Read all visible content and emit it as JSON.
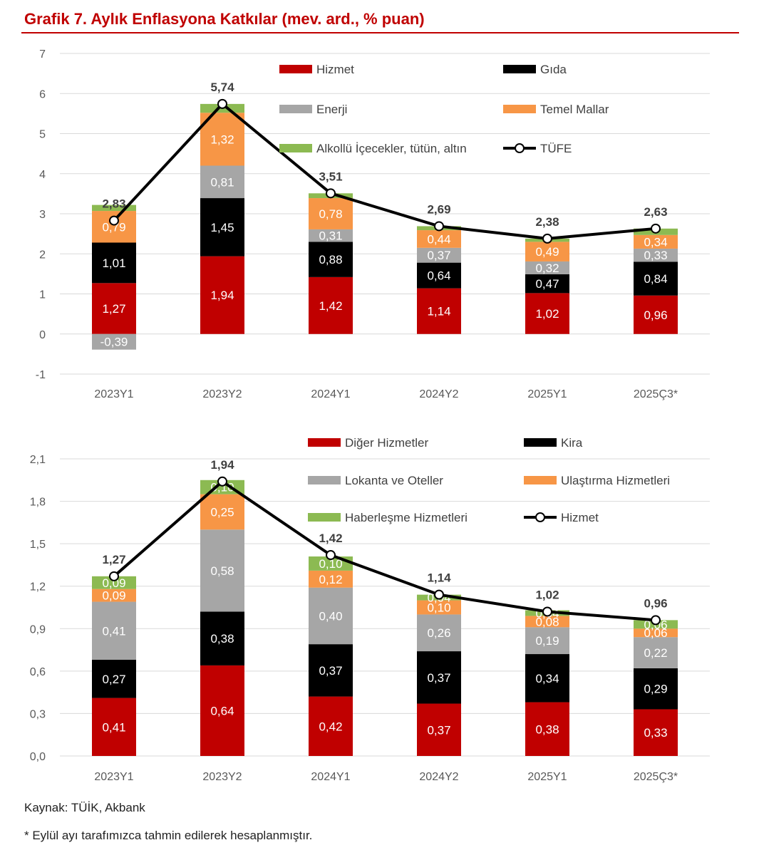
{
  "title": "Grafik 7. Aylık Enflasyona Katkılar (mev. ard., % puan)",
  "footer": {
    "source": "Kaynak: TÜİK, Akbank",
    "note": "* Eylül ayı tarafımızca tahmin edilerek hesaplanmıştır."
  },
  "chart_data": [
    {
      "type": "bar",
      "stacked": true,
      "categories": [
        "2023Y1",
        "2023Y2",
        "2024Y1",
        "2024Y2",
        "2025Y1",
        "2025Ç3*"
      ],
      "ylim": [
        -1,
        7
      ],
      "yticks": [
        "-1",
        "0",
        "1",
        "2",
        "3",
        "4",
        "5",
        "6",
        "7"
      ],
      "grid": true,
      "legend": "top",
      "series": [
        {
          "name": "Hizmet",
          "color": "#c00000",
          "values": [
            1.27,
            1.94,
            1.42,
            1.14,
            1.02,
            0.96
          ],
          "labels": [
            "1,27",
            "1,94",
            "1,42",
            "1,14",
            "1,02",
            "0,96"
          ]
        },
        {
          "name": "Gıda",
          "color": "#000000",
          "values": [
            1.01,
            1.45,
            0.88,
            0.64,
            0.47,
            0.84
          ],
          "labels": [
            "1,01",
            "1,45",
            "0,88",
            "0,64",
            "0,47",
            "0,84"
          ]
        },
        {
          "name": "Enerji",
          "color": "#a6a6a6",
          "values": [
            -0.39,
            0.81,
            0.31,
            0.37,
            0.32,
            0.33
          ],
          "labels": [
            "-0,39",
            "0,81",
            "0,31",
            "0,37",
            "0,32",
            "0,33"
          ]
        },
        {
          "name": "Temel Mallar",
          "color": "#f79646",
          "values": [
            0.79,
            1.32,
            0.78,
            0.44,
            0.49,
            0.34
          ],
          "labels": [
            "0,79",
            "1,32",
            "0,78",
            "0,44",
            "0,49",
            "0,34"
          ]
        },
        {
          "name": "Alkollü İçecekler, tütün, altın",
          "color": "#8cba52",
          "values": [
            0.15,
            0.22,
            0.12,
            0.1,
            0.08,
            0.16
          ],
          "labels": [
            "",
            "",
            "",
            "",
            "",
            ""
          ]
        }
      ],
      "line": {
        "name": "TÜFE",
        "values": [
          2.83,
          5.74,
          3.51,
          2.69,
          2.38,
          2.63
        ],
        "labels": [
          "2,83",
          "5,74",
          "3,51",
          "2,69",
          "2,38",
          "2,63"
        ]
      }
    },
    {
      "type": "bar",
      "stacked": true,
      "categories": [
        "2023Y1",
        "2023Y2",
        "2024Y1",
        "2024Y2",
        "2025Y1",
        "2025Ç3*"
      ],
      "ylim": [
        0,
        2.1
      ],
      "yticks": [
        "0,0",
        "0,3",
        "0,6",
        "0,9",
        "1,2",
        "1,5",
        "1,8",
        "2,1"
      ],
      "grid": true,
      "legend": "top",
      "series": [
        {
          "name": "Diğer Hizmetler",
          "color": "#c00000",
          "values": [
            0.41,
            0.64,
            0.42,
            0.37,
            0.38,
            0.33
          ],
          "labels": [
            "0,41",
            "0,64",
            "0,42",
            "0,37",
            "0,38",
            "0,33"
          ]
        },
        {
          "name": "Kira",
          "color": "#000000",
          "values": [
            0.27,
            0.38,
            0.37,
            0.37,
            0.34,
            0.29
          ],
          "labels": [
            "0,27",
            "0,38",
            "0,37",
            "0,37",
            "0,34",
            "0,29"
          ]
        },
        {
          "name": "Lokanta ve Oteller",
          "color": "#a6a6a6",
          "values": [
            0.41,
            0.58,
            0.4,
            0.26,
            0.19,
            0.22
          ],
          "labels": [
            "0,41",
            "0,58",
            "0,40",
            "0,26",
            "0,19",
            "0,22"
          ]
        },
        {
          "name": "Ulaştırma Hizmetleri",
          "color": "#f79646",
          "values": [
            0.09,
            0.25,
            0.12,
            0.1,
            0.08,
            0.06
          ],
          "labels": [
            "0,09",
            "0,25",
            "0,12",
            "0,10",
            "0,08",
            "0,06"
          ]
        },
        {
          "name": "Haberleşme Hizmetleri",
          "color": "#8cba52",
          "values": [
            0.09,
            0.1,
            0.1,
            0.04,
            0.04,
            0.06
          ],
          "labels": [
            "0,09",
            "0,10",
            "0,10",
            "0,04",
            "0,04",
            "0,06"
          ]
        }
      ],
      "line": {
        "name": "Hizmet",
        "values": [
          1.27,
          1.94,
          1.42,
          1.14,
          1.02,
          0.96
        ],
        "labels": [
          "1,27",
          "1,94",
          "1,42",
          "1,14",
          "1,02",
          "0,96"
        ]
      }
    }
  ]
}
